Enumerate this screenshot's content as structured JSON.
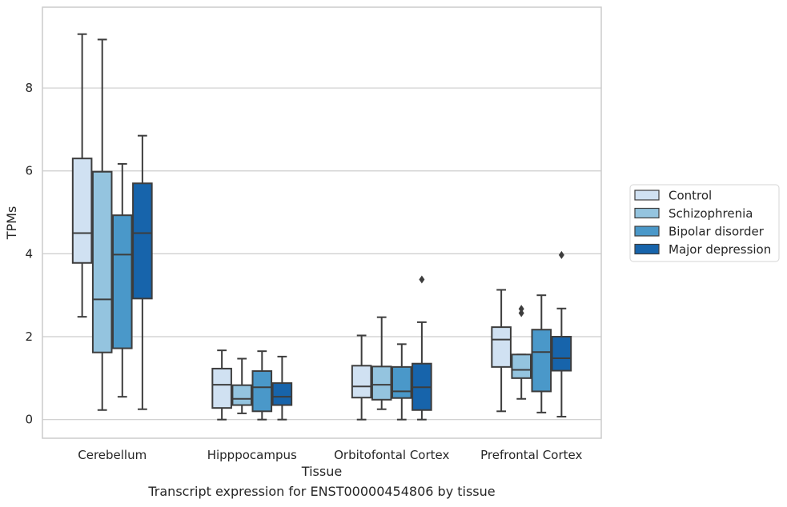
{
  "caption": "Transcript expression for ENST00000454806 by tissue",
  "chart_data": {
    "type": "box",
    "xlabel": "Tissue",
    "ylabel": "TPMs",
    "ylim": [
      -0.45,
      9.95
    ],
    "yticks": [
      0,
      2,
      4,
      6,
      8
    ],
    "categories": [
      "Cerebellum",
      "Hipppocampus",
      "Orbitofontal Cortex",
      "Prefrontal Cortex"
    ],
    "grid": "horizontal",
    "legend_position": "center-right",
    "series": [
      {
        "name": "Control",
        "color": "#d0e1f2",
        "boxes": [
          {
            "whislo": 2.48,
            "q1": 3.78,
            "med": 4.5,
            "q3": 6.3,
            "whishi": 9.3,
            "fliers": []
          },
          {
            "whislo": 0.0,
            "q1": 0.28,
            "med": 0.84,
            "q3": 1.23,
            "whishi": 1.67,
            "fliers": []
          },
          {
            "whislo": 0.0,
            "q1": 0.53,
            "med": 0.8,
            "q3": 1.3,
            "whishi": 2.03,
            "fliers": []
          },
          {
            "whislo": 0.2,
            "q1": 1.27,
            "med": 1.93,
            "q3": 2.23,
            "whishi": 3.13,
            "fliers": []
          }
        ]
      },
      {
        "name": "Schizophrenia",
        "color": "#94c4df",
        "boxes": [
          {
            "whislo": 0.23,
            "q1": 1.62,
            "med": 2.9,
            "q3": 5.98,
            "whishi": 9.17,
            "fliers": []
          },
          {
            "whislo": 0.15,
            "q1": 0.35,
            "med": 0.5,
            "q3": 0.83,
            "whishi": 1.47,
            "fliers": []
          },
          {
            "whislo": 0.25,
            "q1": 0.48,
            "med": 0.84,
            "q3": 1.28,
            "whishi": 2.47,
            "fliers": []
          },
          {
            "whislo": 0.5,
            "q1": 1.0,
            "med": 1.2,
            "q3": 1.57,
            "whishi": 1.57,
            "fliers": [
              2.57,
              2.67
            ]
          }
        ]
      },
      {
        "name": "Bipolar disorder",
        "color": "#4a98c9",
        "boxes": [
          {
            "whislo": 0.55,
            "q1": 1.72,
            "med": 3.98,
            "q3": 4.93,
            "whishi": 6.17,
            "fliers": []
          },
          {
            "whislo": 0.0,
            "q1": 0.2,
            "med": 0.78,
            "q3": 1.17,
            "whishi": 1.65,
            "fliers": []
          },
          {
            "whislo": 0.0,
            "q1": 0.52,
            "med": 0.68,
            "q3": 1.27,
            "whishi": 1.82,
            "fliers": []
          },
          {
            "whislo": 0.17,
            "q1": 0.68,
            "med": 1.63,
            "q3": 2.17,
            "whishi": 3.0,
            "fliers": []
          }
        ]
      },
      {
        "name": "Major depression",
        "color": "#1764ab",
        "boxes": [
          {
            "whislo": 0.25,
            "q1": 2.92,
            "med": 4.5,
            "q3": 5.7,
            "whishi": 6.85,
            "fliers": []
          },
          {
            "whislo": 0.0,
            "q1": 0.35,
            "med": 0.55,
            "q3": 0.88,
            "whishi": 1.52,
            "fliers": []
          },
          {
            "whislo": 0.0,
            "q1": 0.23,
            "med": 0.78,
            "q3": 1.35,
            "whishi": 2.35,
            "fliers": [
              3.38
            ]
          },
          {
            "whislo": 0.07,
            "q1": 1.18,
            "med": 1.48,
            "q3": 2.0,
            "whishi": 2.68,
            "fliers": [
              3.97
            ]
          }
        ]
      }
    ]
  }
}
